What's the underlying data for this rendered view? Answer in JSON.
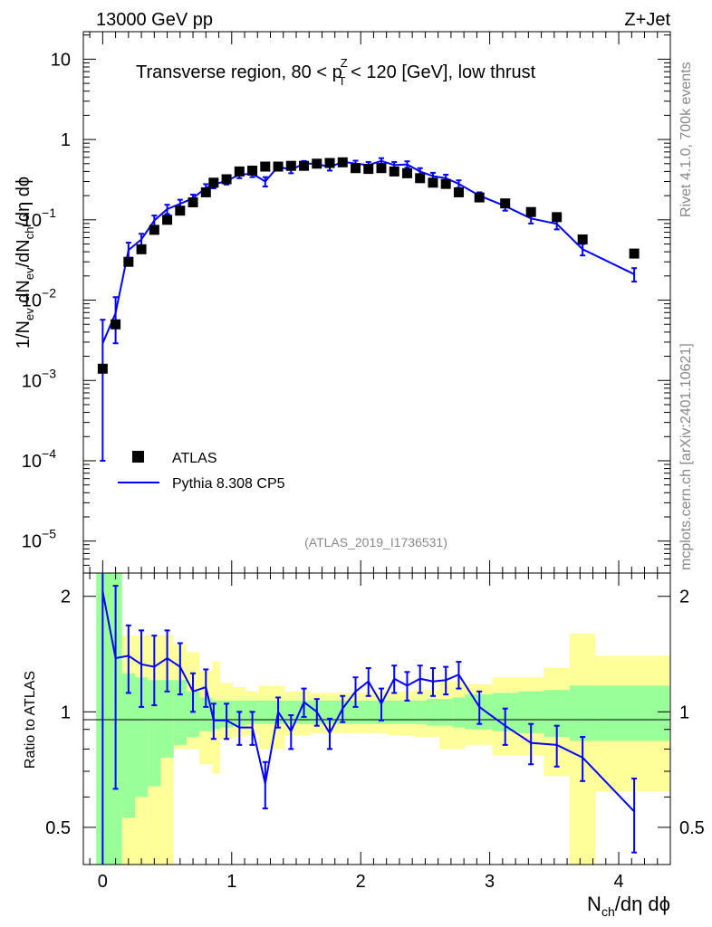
{
  "header": {
    "left": "13000 GeV pp",
    "right": "Z+Jet"
  },
  "side_labels": {
    "rivet": "Rivet 4.1.0,  700k events",
    "mcplots": "mcplots.cern.ch [arXiv:2401.10621]"
  },
  "chart_data": {
    "type": "scatter",
    "title": "Transverse region, 80 < p_T^Z < 120 [GeV], low thrust",
    "title_parts": {
      "before": "Transverse region, 80 < p",
      "sup": "Z",
      "sub": "T",
      "after": " < 120 [GeV], low thrust"
    },
    "watermark": "(ATLAS_2019_I1736531)",
    "xlabel": "N_ch/dη dϕ",
    "xlabel_parts": {
      "a": "N",
      "sub": "ch",
      "b": "/dη dϕ"
    },
    "ylabel": "1/N_ev dN_ev/dN_ch/dη dϕ",
    "ylabel_parts": {
      "p1": "1/N",
      "s1": "ev",
      "p2": " dN",
      "s2": "ev",
      "p3": "/dN",
      "s3": "ch",
      "p4": "/dη dϕ"
    },
    "ratio_ylabel": "Ratio to ATLAS",
    "xlim": [
      -0.15,
      4.4
    ],
    "ylim": [
      4e-06,
      22
    ],
    "yscale": "log",
    "ratio_ylim": [
      0.4,
      2.3
    ],
    "x_ticks": [
      0,
      1,
      2,
      3,
      4
    ],
    "x_tick_labels": [
      "0",
      "1",
      "2",
      "3",
      "4"
    ],
    "y_tick_labels": [
      {
        "v": 10,
        "base": "10",
        "exp": ""
      },
      {
        "v": 1,
        "base": "1",
        "exp": ""
      },
      {
        "v": 0.1,
        "base": "10",
        "exp": "−1"
      },
      {
        "v": 0.01,
        "base": "10",
        "exp": "−2"
      },
      {
        "v": 0.001,
        "base": "10",
        "exp": "−3"
      },
      {
        "v": 0.0001,
        "base": "10",
        "exp": "−4"
      },
      {
        "v": 1e-05,
        "base": "10",
        "exp": "−5"
      }
    ],
    "ratio_ticks": [
      0.5,
      1,
      2
    ],
    "ratio_tick_labels": [
      "0.5",
      "1",
      "2"
    ],
    "legend": [
      {
        "name": "ATLAS",
        "marker": "square",
        "color": "#000000"
      },
      {
        "name": "Pythia 8.308 CP5",
        "marker": "line",
        "color": "#0000ff"
      }
    ],
    "series": [
      {
        "name": "ATLAS",
        "color": "#000000",
        "x": [
          0.0,
          0.1,
          0.2,
          0.3,
          0.4,
          0.5,
          0.6,
          0.7,
          0.8,
          0.86,
          0.96,
          1.06,
          1.16,
          1.26,
          1.36,
          1.46,
          1.56,
          1.66,
          1.76,
          1.86,
          1.96,
          2.06,
          2.16,
          2.26,
          2.36,
          2.46,
          2.56,
          2.66,
          2.76,
          2.92,
          3.12,
          3.32,
          3.52,
          3.72,
          4.12
        ],
        "y": [
          0.0014,
          0.005,
          0.03,
          0.043,
          0.075,
          0.1,
          0.13,
          0.165,
          0.22,
          0.29,
          0.32,
          0.4,
          0.41,
          0.46,
          0.46,
          0.47,
          0.47,
          0.5,
          0.51,
          0.52,
          0.44,
          0.43,
          0.44,
          0.4,
          0.38,
          0.33,
          0.29,
          0.28,
          0.22,
          0.19,
          0.16,
          0.125,
          0.108,
          0.057,
          0.038
        ]
      },
      {
        "name": "Pythia 8.308 CP5",
        "color": "#0000ff",
        "x": [
          0.0,
          0.1,
          0.2,
          0.3,
          0.4,
          0.5,
          0.6,
          0.7,
          0.8,
          0.86,
          0.96,
          1.06,
          1.16,
          1.26,
          1.36,
          1.46,
          1.56,
          1.66,
          1.76,
          1.86,
          1.96,
          2.06,
          2.16,
          2.26,
          2.36,
          2.46,
          2.56,
          2.66,
          2.76,
          2.92,
          3.12,
          3.32,
          3.52,
          3.72,
          4.12
        ],
        "y": [
          0.0029,
          0.0069,
          0.042,
          0.057,
          0.098,
          0.136,
          0.158,
          0.186,
          0.25,
          0.275,
          0.305,
          0.365,
          0.375,
          0.3,
          0.46,
          0.42,
          0.5,
          0.5,
          0.45,
          0.53,
          0.5,
          0.48,
          0.54,
          0.48,
          0.49,
          0.4,
          0.35,
          0.33,
          0.28,
          0.2,
          0.148,
          0.104,
          0.089,
          0.043,
          0.021
        ],
        "yerr": [
          0.0028,
          0.004,
          0.01,
          0.01,
          0.015,
          0.018,
          0.02,
          0.02,
          0.028,
          0.028,
          0.03,
          0.035,
          0.035,
          0.04,
          0.04,
          0.04,
          0.04,
          0.04,
          0.04,
          0.045,
          0.045,
          0.045,
          0.045,
          0.045,
          0.045,
          0.04,
          0.035,
          0.035,
          0.03,
          0.02,
          0.018,
          0.014,
          0.013,
          0.007,
          0.004
        ]
      },
      {
        "name": "Pythia 8.308 CP5 / ATLAS",
        "color": "#0000ff",
        "x": [
          0.0,
          0.1,
          0.2,
          0.3,
          0.4,
          0.5,
          0.6,
          0.7,
          0.8,
          0.86,
          0.96,
          1.06,
          1.16,
          1.26,
          1.36,
          1.46,
          1.56,
          1.66,
          1.76,
          1.86,
          1.96,
          2.06,
          2.16,
          2.26,
          2.36,
          2.46,
          2.56,
          2.66,
          2.76,
          2.92,
          3.12,
          3.32,
          3.52,
          3.72,
          4.12
        ],
        "y": [
          2.06,
          1.38,
          1.4,
          1.33,
          1.31,
          1.38,
          1.31,
          1.13,
          1.16,
          0.95,
          0.95,
          0.91,
          0.91,
          0.65,
          1.0,
          0.89,
          1.06,
          1.0,
          0.88,
          1.02,
          1.13,
          1.2,
          1.05,
          1.22,
          1.17,
          1.22,
          1.2,
          1.21,
          1.25,
          1.03,
          0.92,
          0.83,
          0.82,
          0.76,
          0.55
        ],
        "yerr": [
          2.0,
          0.75,
          0.28,
          0.3,
          0.27,
          0.25,
          0.2,
          0.13,
          0.13,
          0.1,
          0.1,
          0.09,
          0.09,
          0.09,
          0.09,
          0.09,
          0.09,
          0.08,
          0.08,
          0.08,
          0.1,
          0.1,
          0.1,
          0.1,
          0.1,
          0.1,
          0.1,
          0.1,
          0.1,
          0.1,
          0.1,
          0.1,
          0.1,
          0.1,
          0.12
        ]
      }
    ],
    "bands": {
      "edges": [
        -0.05,
        0.05,
        0.15,
        0.25,
        0.35,
        0.45,
        0.55,
        0.65,
        0.75,
        0.85,
        0.91,
        1.01,
        1.11,
        1.21,
        1.31,
        1.41,
        1.51,
        1.61,
        1.71,
        1.81,
        1.91,
        2.01,
        2.11,
        2.21,
        2.31,
        2.41,
        2.51,
        2.61,
        2.71,
        2.81,
        3.02,
        3.22,
        3.42,
        3.62,
        3.82,
        4.42
      ],
      "inner": [
        [
          0.1,
          9.9
        ],
        [
          0.1,
          9.9
        ],
        [
          0.53,
          1.26
        ],
        [
          0.6,
          1.23
        ],
        [
          0.64,
          1.21
        ],
        [
          0.76,
          1.21
        ],
        [
          0.82,
          1.21
        ],
        [
          0.86,
          1.13
        ],
        [
          0.89,
          1.09
        ],
        [
          0.9,
          1.07
        ],
        [
          0.91,
          1.07
        ],
        [
          0.92,
          1.07
        ],
        [
          0.93,
          1.07
        ],
        [
          0.93,
          1.07
        ],
        [
          0.93,
          1.07
        ],
        [
          0.93,
          1.07
        ],
        [
          0.93,
          1.07
        ],
        [
          0.93,
          1.07
        ],
        [
          0.93,
          1.07
        ],
        [
          0.93,
          1.07
        ],
        [
          0.93,
          1.07
        ],
        [
          0.93,
          1.07
        ],
        [
          0.93,
          1.07
        ],
        [
          0.93,
          1.07
        ],
        [
          0.93,
          1.07
        ],
        [
          0.93,
          1.07
        ],
        [
          0.92,
          1.08
        ],
        [
          0.92,
          1.08
        ],
        [
          0.91,
          1.09
        ],
        [
          0.9,
          1.11
        ],
        [
          0.89,
          1.12
        ],
        [
          0.88,
          1.13
        ],
        [
          0.86,
          1.14
        ],
        [
          0.84,
          1.17
        ],
        [
          0.84,
          1.17
        ]
      ],
      "outer": [
        [
          0.1,
          9.9
        ],
        [
          0.1,
          9.9
        ],
        [
          0.37,
          1.58
        ],
        [
          0.37,
          1.58
        ],
        [
          0.37,
          1.58
        ],
        [
          0.37,
          1.58
        ],
        [
          0.8,
          1.5
        ],
        [
          0.8,
          1.43
        ],
        [
          0.73,
          1.28
        ],
        [
          0.69,
          1.35
        ],
        [
          0.85,
          1.19
        ],
        [
          0.86,
          1.16
        ],
        [
          0.87,
          1.13
        ],
        [
          0.8,
          1.17
        ],
        [
          0.8,
          1.17
        ],
        [
          0.87,
          1.13
        ],
        [
          0.87,
          1.13
        ],
        [
          0.88,
          1.12
        ],
        [
          0.88,
          1.12
        ],
        [
          0.88,
          1.12
        ],
        [
          0.88,
          1.12
        ],
        [
          0.88,
          1.12
        ],
        [
          0.88,
          1.13
        ],
        [
          0.87,
          1.13
        ],
        [
          0.87,
          1.13
        ],
        [
          0.86,
          1.14
        ],
        [
          0.86,
          1.14
        ],
        [
          0.8,
          1.2
        ],
        [
          0.8,
          1.2
        ],
        [
          0.82,
          1.18
        ],
        [
          0.77,
          1.23
        ],
        [
          0.77,
          1.23
        ],
        [
          0.68,
          1.3
        ],
        [
          0.38,
          1.6
        ],
        [
          0.62,
          1.4
        ]
      ]
    }
  }
}
